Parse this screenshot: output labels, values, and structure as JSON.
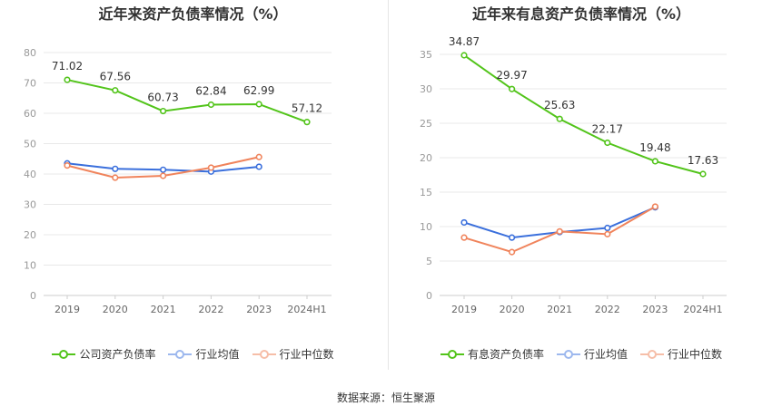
{
  "source": "数据来源：恒生聚源",
  "colors": {
    "company": "#52c41a",
    "avg": "#3a6fdc",
    "median": "#f0845c",
    "grid": "#e8e8e8",
    "axis": "#999999"
  },
  "chart_data": [
    {
      "type": "line",
      "title": "近年来资产负债率情况（%）",
      "categories": [
        "2019",
        "2020",
        "2021",
        "2022",
        "2023",
        "2024H1"
      ],
      "ylim": [
        0,
        80
      ],
      "yticks": [
        0,
        10,
        20,
        30,
        40,
        50,
        60,
        70,
        80
      ],
      "grid": true,
      "legend_position": "bottom",
      "series": [
        {
          "name": "公司资产负债率",
          "values": [
            71.02,
            67.56,
            60.73,
            62.84,
            62.99,
            57.12
          ],
          "labels": [
            "71.02",
            "67.56",
            "60.73",
            "62.84",
            "62.99",
            "57.12"
          ]
        },
        {
          "name": "行业均值",
          "values": [
            43.5,
            41.7,
            41.4,
            40.8,
            42.4,
            null
          ]
        },
        {
          "name": "行业中位数",
          "values": [
            42.8,
            38.8,
            39.4,
            42.1,
            45.6,
            null
          ]
        }
      ]
    },
    {
      "type": "line",
      "title": "近年来有息资产负债率情况（%）",
      "categories": [
        "2019",
        "2020",
        "2021",
        "2022",
        "2023",
        "2024H1"
      ],
      "ylim": [
        0,
        35
      ],
      "yticks": [
        0,
        5,
        10,
        15,
        20,
        25,
        30,
        35
      ],
      "grid": true,
      "legend_position": "bottom",
      "series": [
        {
          "name": "有息资产负债率",
          "values": [
            34.87,
            29.97,
            25.63,
            22.17,
            19.48,
            17.63
          ],
          "labels": [
            "34.87",
            "29.97",
            "25.63",
            "22.17",
            "19.48",
            "17.63"
          ]
        },
        {
          "name": "行业均值",
          "values": [
            10.6,
            8.4,
            9.2,
            9.8,
            12.8,
            null
          ]
        },
        {
          "name": "行业中位数",
          "values": [
            8.4,
            6.3,
            9.3,
            8.9,
            12.9,
            null
          ]
        }
      ]
    }
  ]
}
